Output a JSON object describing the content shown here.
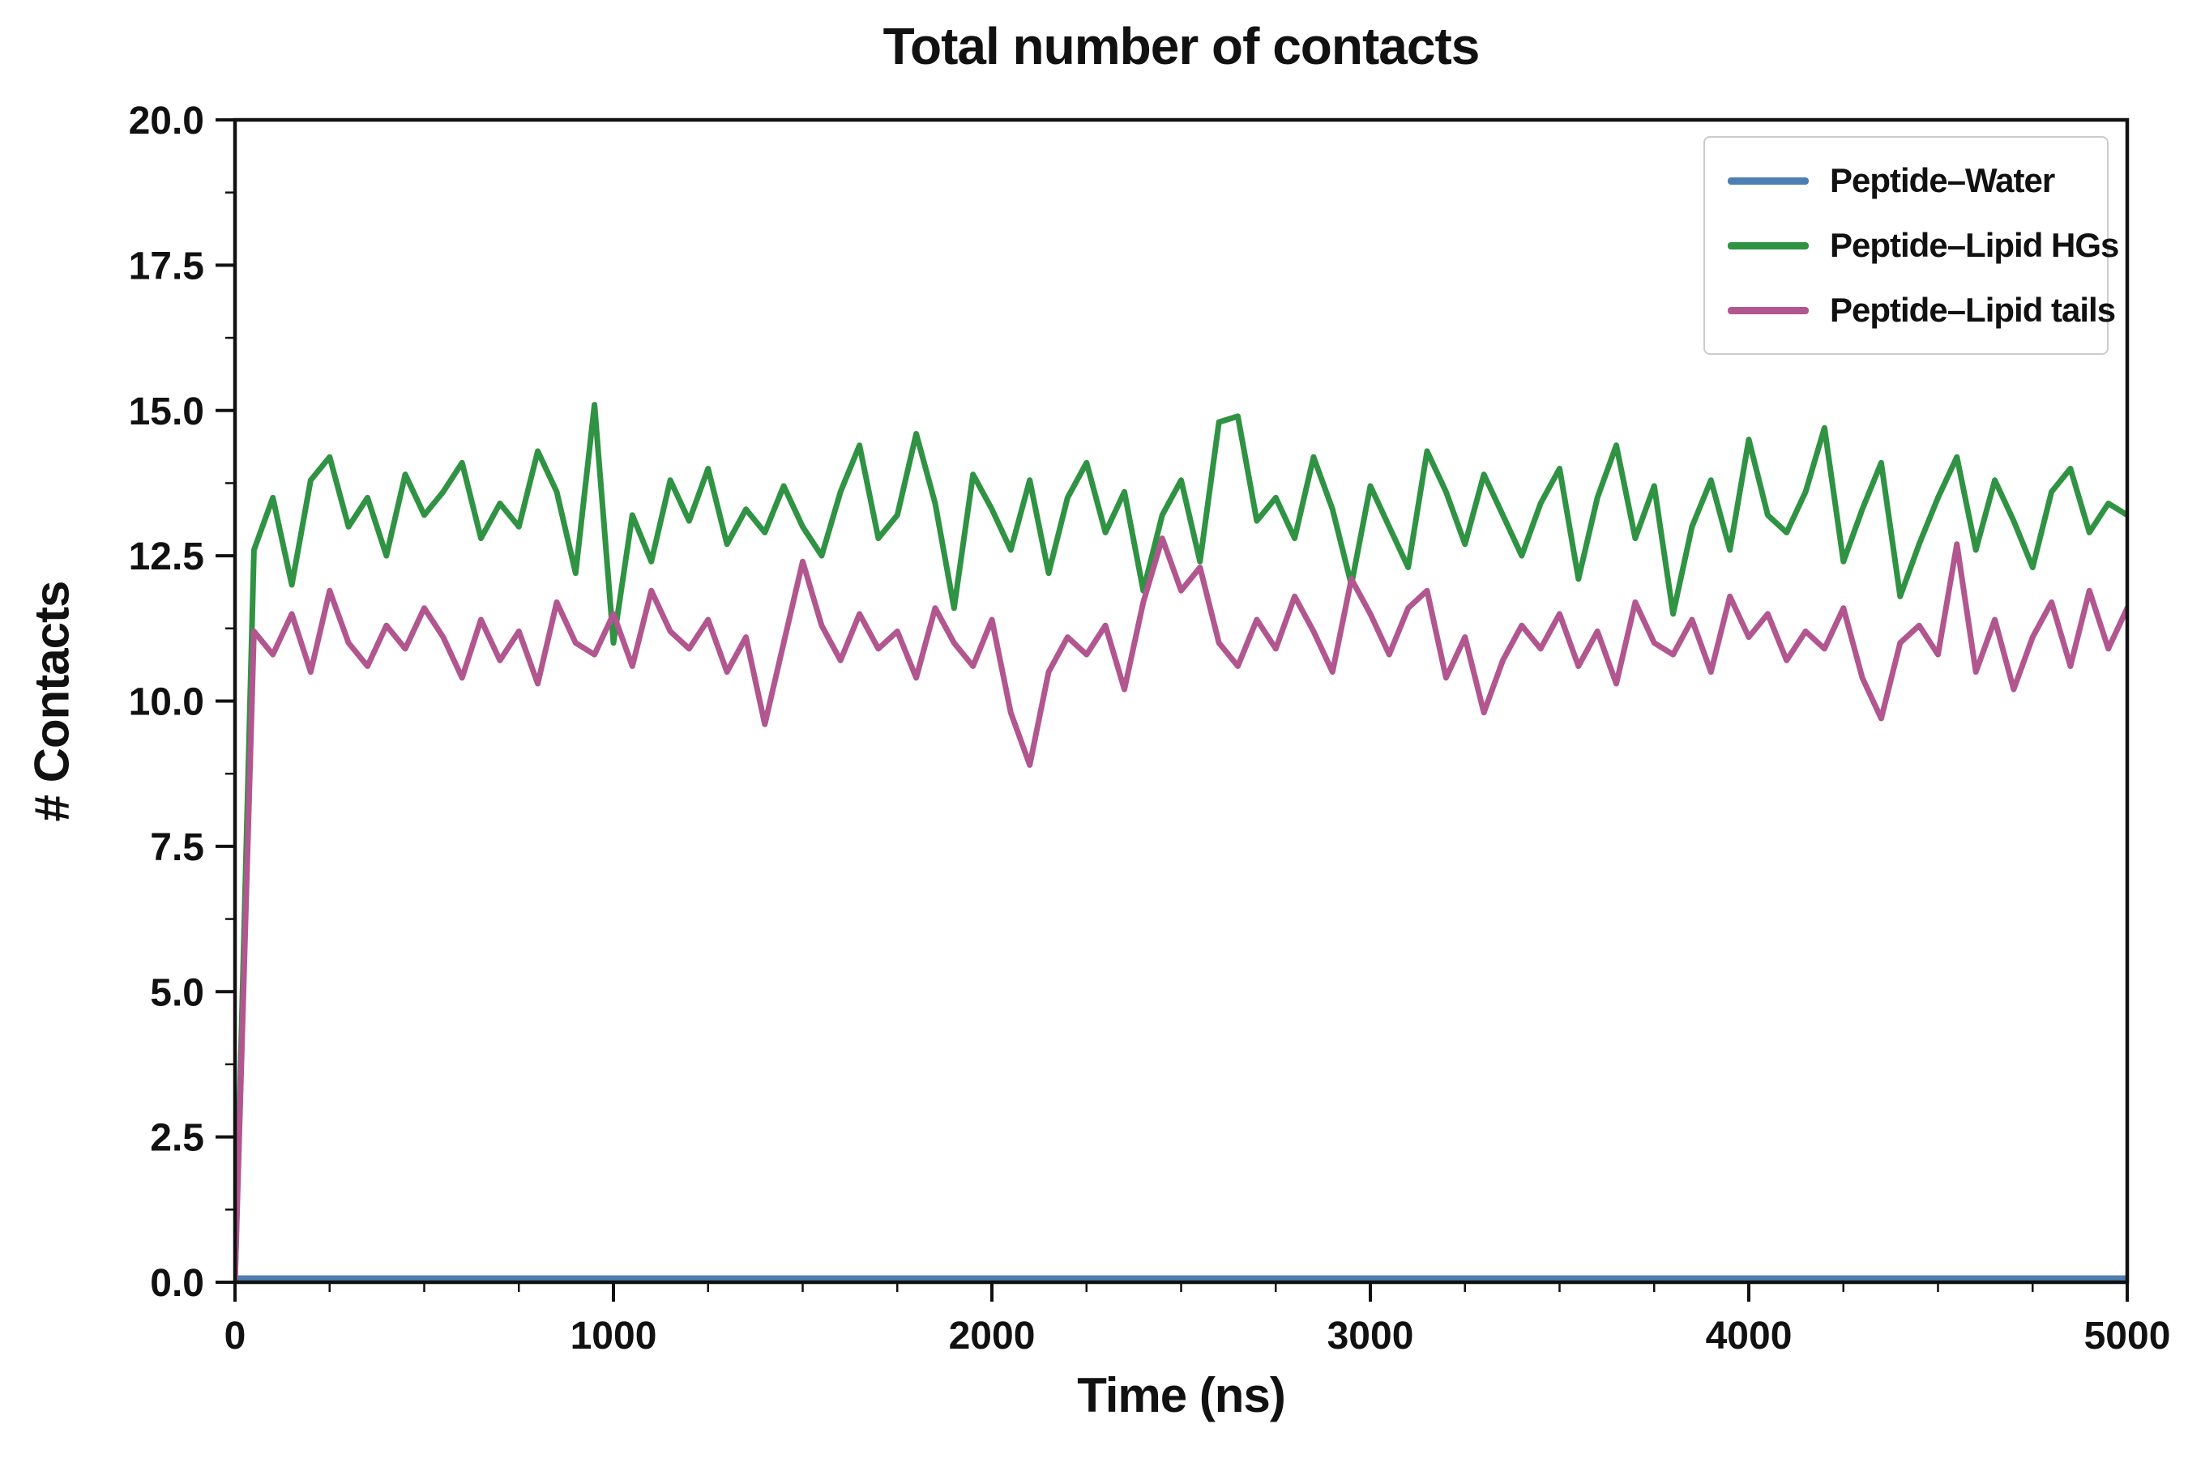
{
  "chart_data": {
    "type": "line",
    "title": "Total number of contacts",
    "xlabel": "Time (ns)",
    "ylabel": "# Contacts",
    "xlim": [
      0,
      5000
    ],
    "ylim": [
      0,
      20
    ],
    "xticks": [
      0,
      1000,
      2000,
      3000,
      4000,
      5000
    ],
    "xtick_labels": [
      "0",
      "1000",
      "2000",
      "3000",
      "4000",
      "5000"
    ],
    "yticks": [
      0,
      2.5,
      5,
      7.5,
      10,
      12.5,
      15,
      17.5,
      20
    ],
    "ytick_labels": [
      "0.0",
      "2.5",
      "5.0",
      "7.5",
      "10.0",
      "12.5",
      "15.0",
      "17.5",
      "20.0"
    ],
    "x_minor_step": 250,
    "y_minor_step": 1.25,
    "grid": false,
    "legend_position": "upper right",
    "x_start": 0,
    "x_step": 50,
    "series": [
      {
        "name": "Peptide–Water",
        "color": "#4d7fb3",
        "constant": 0.07
      },
      {
        "name": "Peptide–Lipid HGs",
        "color": "#2f9343",
        "values": [
          0.0,
          12.6,
          13.5,
          12.0,
          13.8,
          14.2,
          13.0,
          13.5,
          12.5,
          13.9,
          13.2,
          13.6,
          14.1,
          12.8,
          13.4,
          13.0,
          14.3,
          13.6,
          12.2,
          15.1,
          11.0,
          13.2,
          12.4,
          13.8,
          13.1,
          14.0,
          12.7,
          13.3,
          12.9,
          13.7,
          13.0,
          12.5,
          13.6,
          14.4,
          12.8,
          13.2,
          14.6,
          13.4,
          11.6,
          13.9,
          13.3,
          12.6,
          13.8,
          12.2,
          13.5,
          14.1,
          12.9,
          13.6,
          11.9,
          13.2,
          13.8,
          12.4,
          14.8,
          14.9,
          13.1,
          13.5,
          12.8,
          14.2,
          13.3,
          12.0,
          13.7,
          13.0,
          12.3,
          14.3,
          13.6,
          12.7,
          13.9,
          13.2,
          12.5,
          13.4,
          14.0,
          12.1,
          13.5,
          14.4,
          12.8,
          13.7,
          11.5,
          13.0,
          13.8,
          12.6,
          14.5,
          13.2,
          12.9,
          13.6,
          14.7,
          12.4,
          13.3,
          14.1,
          11.8,
          12.7,
          13.5,
          14.2,
          12.6,
          13.8,
          13.1,
          12.3,
          13.6,
          14.0,
          12.9,
          13.4,
          13.2
        ]
      },
      {
        "name": "Peptide–Lipid tails",
        "color": "#b2568f",
        "values": [
          0.0,
          11.2,
          10.8,
          11.5,
          10.5,
          11.9,
          11.0,
          10.6,
          11.3,
          10.9,
          11.6,
          11.1,
          10.4,
          11.4,
          10.7,
          11.2,
          10.3,
          11.7,
          11.0,
          10.8,
          11.5,
          10.6,
          11.9,
          11.2,
          10.9,
          11.4,
          10.5,
          11.1,
          9.6,
          11.0,
          12.4,
          11.3,
          10.7,
          11.5,
          10.9,
          11.2,
          10.4,
          11.6,
          11.0,
          10.6,
          11.4,
          9.8,
          8.9,
          10.5,
          11.1,
          10.8,
          11.3,
          10.2,
          11.7,
          12.8,
          11.9,
          12.3,
          11.0,
          10.6,
          11.4,
          10.9,
          11.8,
          11.2,
          10.5,
          12.1,
          11.5,
          10.8,
          11.6,
          11.9,
          10.4,
          11.1,
          9.8,
          10.7,
          11.3,
          10.9,
          11.5,
          10.6,
          11.2,
          10.3,
          11.7,
          11.0,
          10.8,
          11.4,
          10.5,
          11.8,
          11.1,
          11.5,
          10.7,
          11.2,
          10.9,
          11.6,
          10.4,
          9.7,
          11.0,
          11.3,
          10.8,
          12.7,
          10.5,
          11.4,
          10.2,
          11.1,
          11.7,
          10.6,
          11.9,
          10.9,
          11.6
        ]
      }
    ]
  }
}
